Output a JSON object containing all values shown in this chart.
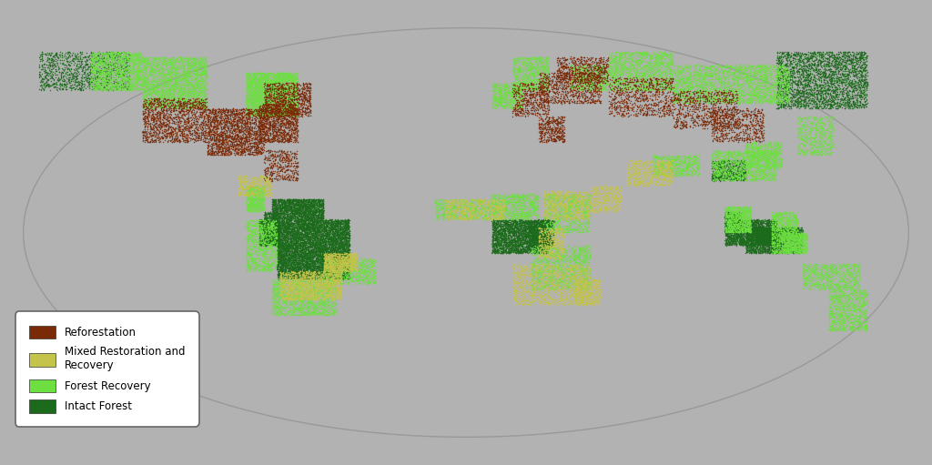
{
  "background_color": "#b2b2b2",
  "land_color": "#ffffff",
  "border_color": "#cccccc",
  "border_width": 0.3,
  "legend_entries": [
    {
      "label": "Reforestation",
      "color": "#7b2a08"
    },
    {
      "label": "Mixed Restoration and\nRecovery",
      "color": "#c5c44a"
    },
    {
      "label": "Forest Recovery",
      "color": "#6de040"
    },
    {
      "label": "Intact Forest",
      "color": "#1c6b1c"
    }
  ],
  "figsize": [
    10.24,
    5.11
  ],
  "dpi": 100,
  "forest_regions": [
    {
      "lon": [
        -73,
        -45
      ],
      "lat": [
        -18,
        5
      ],
      "color": "#1c6b1c",
      "density": 8000
    },
    {
      "lon": [
        -75,
        -55
      ],
      "lat": [
        5,
        13
      ],
      "color": "#1c6b1c",
      "density": 2000
    },
    {
      "lon": [
        -80,
        -73
      ],
      "lat": [
        -5,
        5
      ],
      "color": "#1c6b1c",
      "density": 800
    },
    {
      "lon": [
        10,
        32
      ],
      "lat": [
        -8,
        5
      ],
      "color": "#1c6b1c",
      "density": 3000
    },
    {
      "lon": [
        100,
        120
      ],
      "lat": [
        -5,
        5
      ],
      "color": "#1c6b1c",
      "density": 2000
    },
    {
      "lon": [
        108,
        130
      ],
      "lat": [
        -8,
        2
      ],
      "color": "#1c6b1c",
      "density": 2000
    },
    {
      "lon": [
        95,
        108
      ],
      "lat": [
        20,
        28
      ],
      "color": "#1c6b1c",
      "density": 600
    },
    {
      "lon": [
        120,
        155
      ],
      "lat": [
        48,
        70
      ],
      "color": "#1c6b1c",
      "density": 3000
    },
    {
      "lon": [
        -165,
        -130
      ],
      "lat": [
        55,
        70
      ],
      "color": "#1c6b1c",
      "density": 1200
    },
    {
      "lon": [
        -78,
        -72
      ],
      "lat": [
        -5,
        8
      ],
      "color": "#1c6b1c",
      "density": 600
    },
    {
      "lon": [
        24,
        34
      ],
      "lat": [
        -5,
        5
      ],
      "color": "#1c6b1c",
      "density": 600
    },
    {
      "lon": [
        100,
        106
      ],
      "lat": [
        0,
        8
      ],
      "color": "#1c6b1c",
      "density": 800
    },
    {
      "lon": [
        112,
        118
      ],
      "lat": [
        -4,
        2
      ],
      "color": "#1c6b1c",
      "density": 600
    },
    {
      "lon": [
        -85,
        -65
      ],
      "lat": [
        45,
        62
      ],
      "color": "#6de040",
      "density": 3000
    },
    {
      "lon": [
        -125,
        -100
      ],
      "lat": [
        48,
        68
      ],
      "color": "#6de040",
      "density": 2500
    },
    {
      "lon": [
        -145,
        -125
      ],
      "lat": [
        55,
        70
      ],
      "color": "#6de040",
      "density": 1500
    },
    {
      "lon": [
        -85,
        -73
      ],
      "lat": [
        -15,
        5
      ],
      "color": "#6de040",
      "density": 1000
    },
    {
      "lon": [
        -75,
        -50
      ],
      "lat": [
        -32,
        -18
      ],
      "color": "#6de040",
      "density": 1500
    },
    {
      "lon": [
        -55,
        -35
      ],
      "lat": [
        -20,
        -10
      ],
      "color": "#6de040",
      "density": 800
    },
    {
      "lon": [
        -85,
        -78
      ],
      "lat": [
        8,
        18
      ],
      "color": "#6de040",
      "density": 600
    },
    {
      "lon": [
        25,
        48
      ],
      "lat": [
        -22,
        -5
      ],
      "color": "#6de040",
      "density": 1200
    },
    {
      "lon": [
        30,
        48
      ],
      "lat": [
        0,
        15
      ],
      "color": "#6de040",
      "density": 800
    },
    {
      "lon": [
        10,
        28
      ],
      "lat": [
        5,
        15
      ],
      "color": "#6de040",
      "density": 800
    },
    {
      "lon": [
        -12,
        10
      ],
      "lat": [
        5,
        13
      ],
      "color": "#6de040",
      "density": 600
    },
    {
      "lon": [
        95,
        120
      ],
      "lat": [
        20,
        32
      ],
      "color": "#6de040",
      "density": 1200
    },
    {
      "lon": [
        100,
        110
      ],
      "lat": [
        0,
        10
      ],
      "color": "#6de040",
      "density": 1000
    },
    {
      "lon": [
        118,
        130
      ],
      "lat": [
        -8,
        0
      ],
      "color": "#6de040",
      "density": 600
    },
    {
      "lon": [
        130,
        152
      ],
      "lat": [
        -22,
        -12
      ],
      "color": "#6de040",
      "density": 800
    },
    {
      "lon": [
        140,
        155
      ],
      "lat": [
        -38,
        -22
      ],
      "color": "#6de040",
      "density": 900
    },
    {
      "lon": [
        55,
        80
      ],
      "lat": [
        55,
        70
      ],
      "color": "#6de040",
      "density": 1500
    },
    {
      "lon": [
        80,
        125
      ],
      "lat": [
        50,
        65
      ],
      "color": "#6de040",
      "density": 2500
    },
    {
      "lon": [
        18,
        32
      ],
      "lat": [
        55,
        68
      ],
      "color": "#6de040",
      "density": 800
    },
    {
      "lon": [
        10,
        22
      ],
      "lat": [
        48,
        58
      ],
      "color": "#6de040",
      "density": 600
    },
    {
      "lon": [
        108,
        122
      ],
      "lat": [
        25,
        35
      ],
      "color": "#6de040",
      "density": 600
    },
    {
      "lon": [
        128,
        142
      ],
      "lat": [
        30,
        45
      ],
      "color": "#6de040",
      "density": 600
    },
    {
      "lon": [
        40,
        55
      ],
      "lat": [
        55,
        65
      ],
      "color": "#6de040",
      "density": 600
    },
    {
      "lon": [
        72,
        90
      ],
      "lat": [
        22,
        30
      ],
      "color": "#6de040",
      "density": 600
    },
    {
      "lon": [
        118,
        128
      ],
      "lat": [
        0,
        8
      ],
      "color": "#6de040",
      "density": 500
    },
    {
      "lon": [
        122,
        132
      ],
      "lat": [
        -8,
        0
      ],
      "color": "#6de040",
      "density": 500
    },
    {
      "lon": [
        -72,
        -48
      ],
      "lat": [
        -26,
        -15
      ],
      "color": "#c5c44a",
      "density": 1500
    },
    {
      "lon": [
        -55,
        -42
      ],
      "lat": [
        -15,
        -8
      ],
      "color": "#c5c44a",
      "density": 800
    },
    {
      "lon": [
        18,
        48
      ],
      "lat": [
        -28,
        -12
      ],
      "color": "#c5c44a",
      "density": 1200
    },
    {
      "lon": [
        -8,
        15
      ],
      "lat": [
        5,
        13
      ],
      "color": "#c5c44a",
      "density": 600
    },
    {
      "lon": [
        30,
        48
      ],
      "lat": [
        5,
        16
      ],
      "color": "#c5c44a",
      "density": 600
    },
    {
      "lon": [
        62,
        80
      ],
      "lat": [
        18,
        28
      ],
      "color": "#c5c44a",
      "density": 600
    },
    {
      "lon": [
        -88,
        -75
      ],
      "lat": [
        14,
        22
      ],
      "color": "#c5c44a",
      "density": 400
    },
    {
      "lon": [
        28,
        38
      ],
      "lat": [
        -10,
        2
      ],
      "color": "#c5c44a",
      "density": 400
    },
    {
      "lon": [
        48,
        60
      ],
      "lat": [
        8,
        18
      ],
      "color": "#c5c44a",
      "density": 400
    },
    {
      "lon": [
        42,
        52
      ],
      "lat": [
        -28,
        -18
      ],
      "color": "#c5c44a",
      "density": 400
    },
    {
      "lon": [
        -125,
        -100
      ],
      "lat": [
        35,
        52
      ],
      "color": "#7b2a08",
      "density": 1500
    },
    {
      "lon": [
        -100,
        -78
      ],
      "lat": [
        30,
        48
      ],
      "color": "#7b2a08",
      "density": 2000
    },
    {
      "lon": [
        -80,
        -65
      ],
      "lat": [
        35,
        50
      ],
      "color": "#7b2a08",
      "density": 1200
    },
    {
      "lon": [
        -78,
        -60
      ],
      "lat": [
        45,
        58
      ],
      "color": "#7b2a08",
      "density": 1000
    },
    {
      "lon": [
        28,
        52
      ],
      "lat": [
        50,
        62
      ],
      "color": "#7b2a08",
      "density": 800
    },
    {
      "lon": [
        55,
        80
      ],
      "lat": [
        45,
        60
      ],
      "color": "#7b2a08",
      "density": 800
    },
    {
      "lon": [
        80,
        105
      ],
      "lat": [
        40,
        55
      ],
      "color": "#7b2a08",
      "density": 800
    },
    {
      "lon": [
        35,
        55
      ],
      "lat": [
        58,
        68
      ],
      "color": "#7b2a08",
      "density": 600
    },
    {
      "lon": [
        18,
        32
      ],
      "lat": [
        45,
        58
      ],
      "color": "#7b2a08",
      "density": 500
    },
    {
      "lon": [
        95,
        115
      ],
      "lat": [
        35,
        48
      ],
      "color": "#7b2a08",
      "density": 600
    },
    {
      "lon": [
        -78,
        -65
      ],
      "lat": [
        20,
        32
      ],
      "color": "#7b2a08",
      "density": 400
    },
    {
      "lon": [
        28,
        38
      ],
      "lat": [
        35,
        45
      ],
      "color": "#7b2a08",
      "density": 400
    }
  ]
}
